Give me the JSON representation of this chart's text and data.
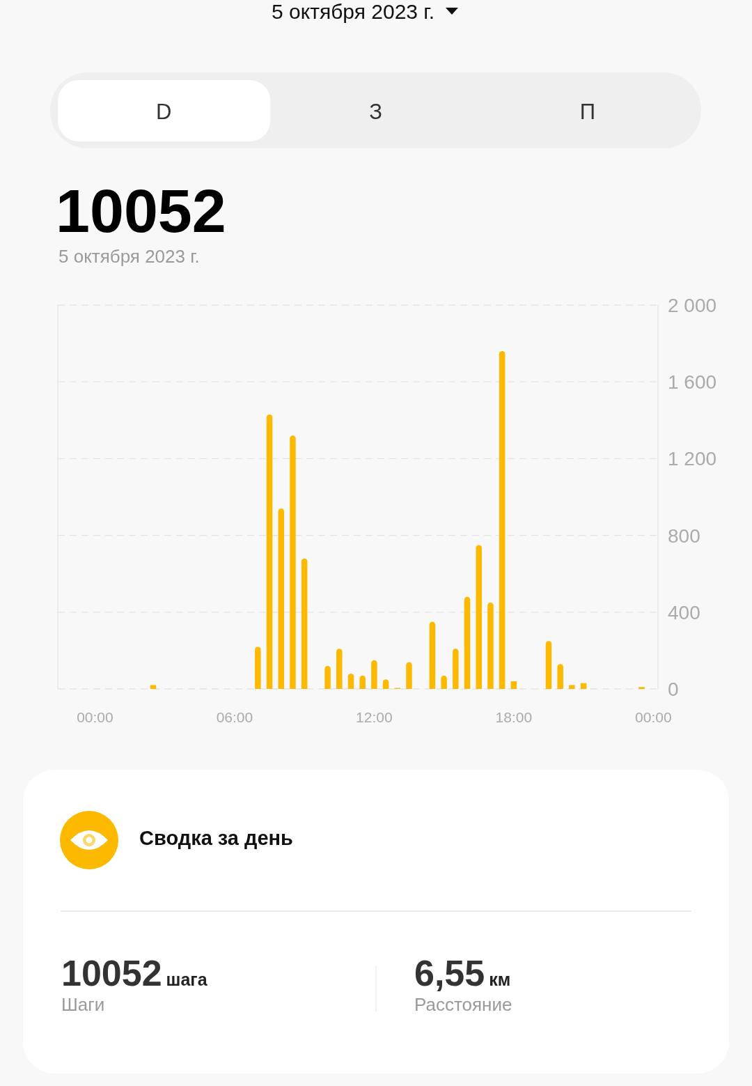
{
  "chart_data": [
    {
      "type": "bar",
      "title": "10052",
      "subtitle": "5 октября 2023 г.",
      "annotations": [
        "5 октября 2023 г.",
        "D",
        "З",
        "П"
      ],
      "x": [
        2.5,
        7,
        7.5,
        8,
        8.5,
        9,
        10,
        10.5,
        11,
        11.5,
        12,
        12.5,
        13,
        13.5,
        14.5,
        15,
        15.5,
        16,
        16.5,
        17,
        17.5,
        18,
        19.5,
        20,
        20.5,
        21,
        23.5
      ],
      "values": [
        20,
        220,
        1430,
        940,
        1320,
        680,
        120,
        210,
        80,
        70,
        150,
        50,
        5,
        140,
        350,
        70,
        210,
        480,
        750,
        450,
        1760,
        40,
        250,
        130,
        20,
        30,
        10
      ],
      "color": "#fcb900",
      "xlim": [
        -1.6,
        24.2
      ],
      "xticks": [
        {
          "value": 0,
          "label": "00:00"
        },
        {
          "value": 6,
          "label": "06:00"
        },
        {
          "value": 12,
          "label": "12:00"
        },
        {
          "value": 18,
          "label": "18:00"
        },
        {
          "value": 24,
          "label": "00:00"
        }
      ],
      "ylim": [
        0,
        2000
      ],
      "yticks": [
        0,
        400,
        800,
        {
          "value": 1200,
          "label": "1 200"
        },
        {
          "value": 1600,
          "label": "1 600"
        },
        {
          "value": 2000,
          "label": "2 000"
        }
      ],
      "grid": "y"
    },
    {
      "type": "other",
      "title": "Сводка за день",
      "annotations": [
        "10052",
        "шага",
        "Шаги",
        "6,55",
        "км",
        "Расстояние"
      ]
    }
  ]
}
